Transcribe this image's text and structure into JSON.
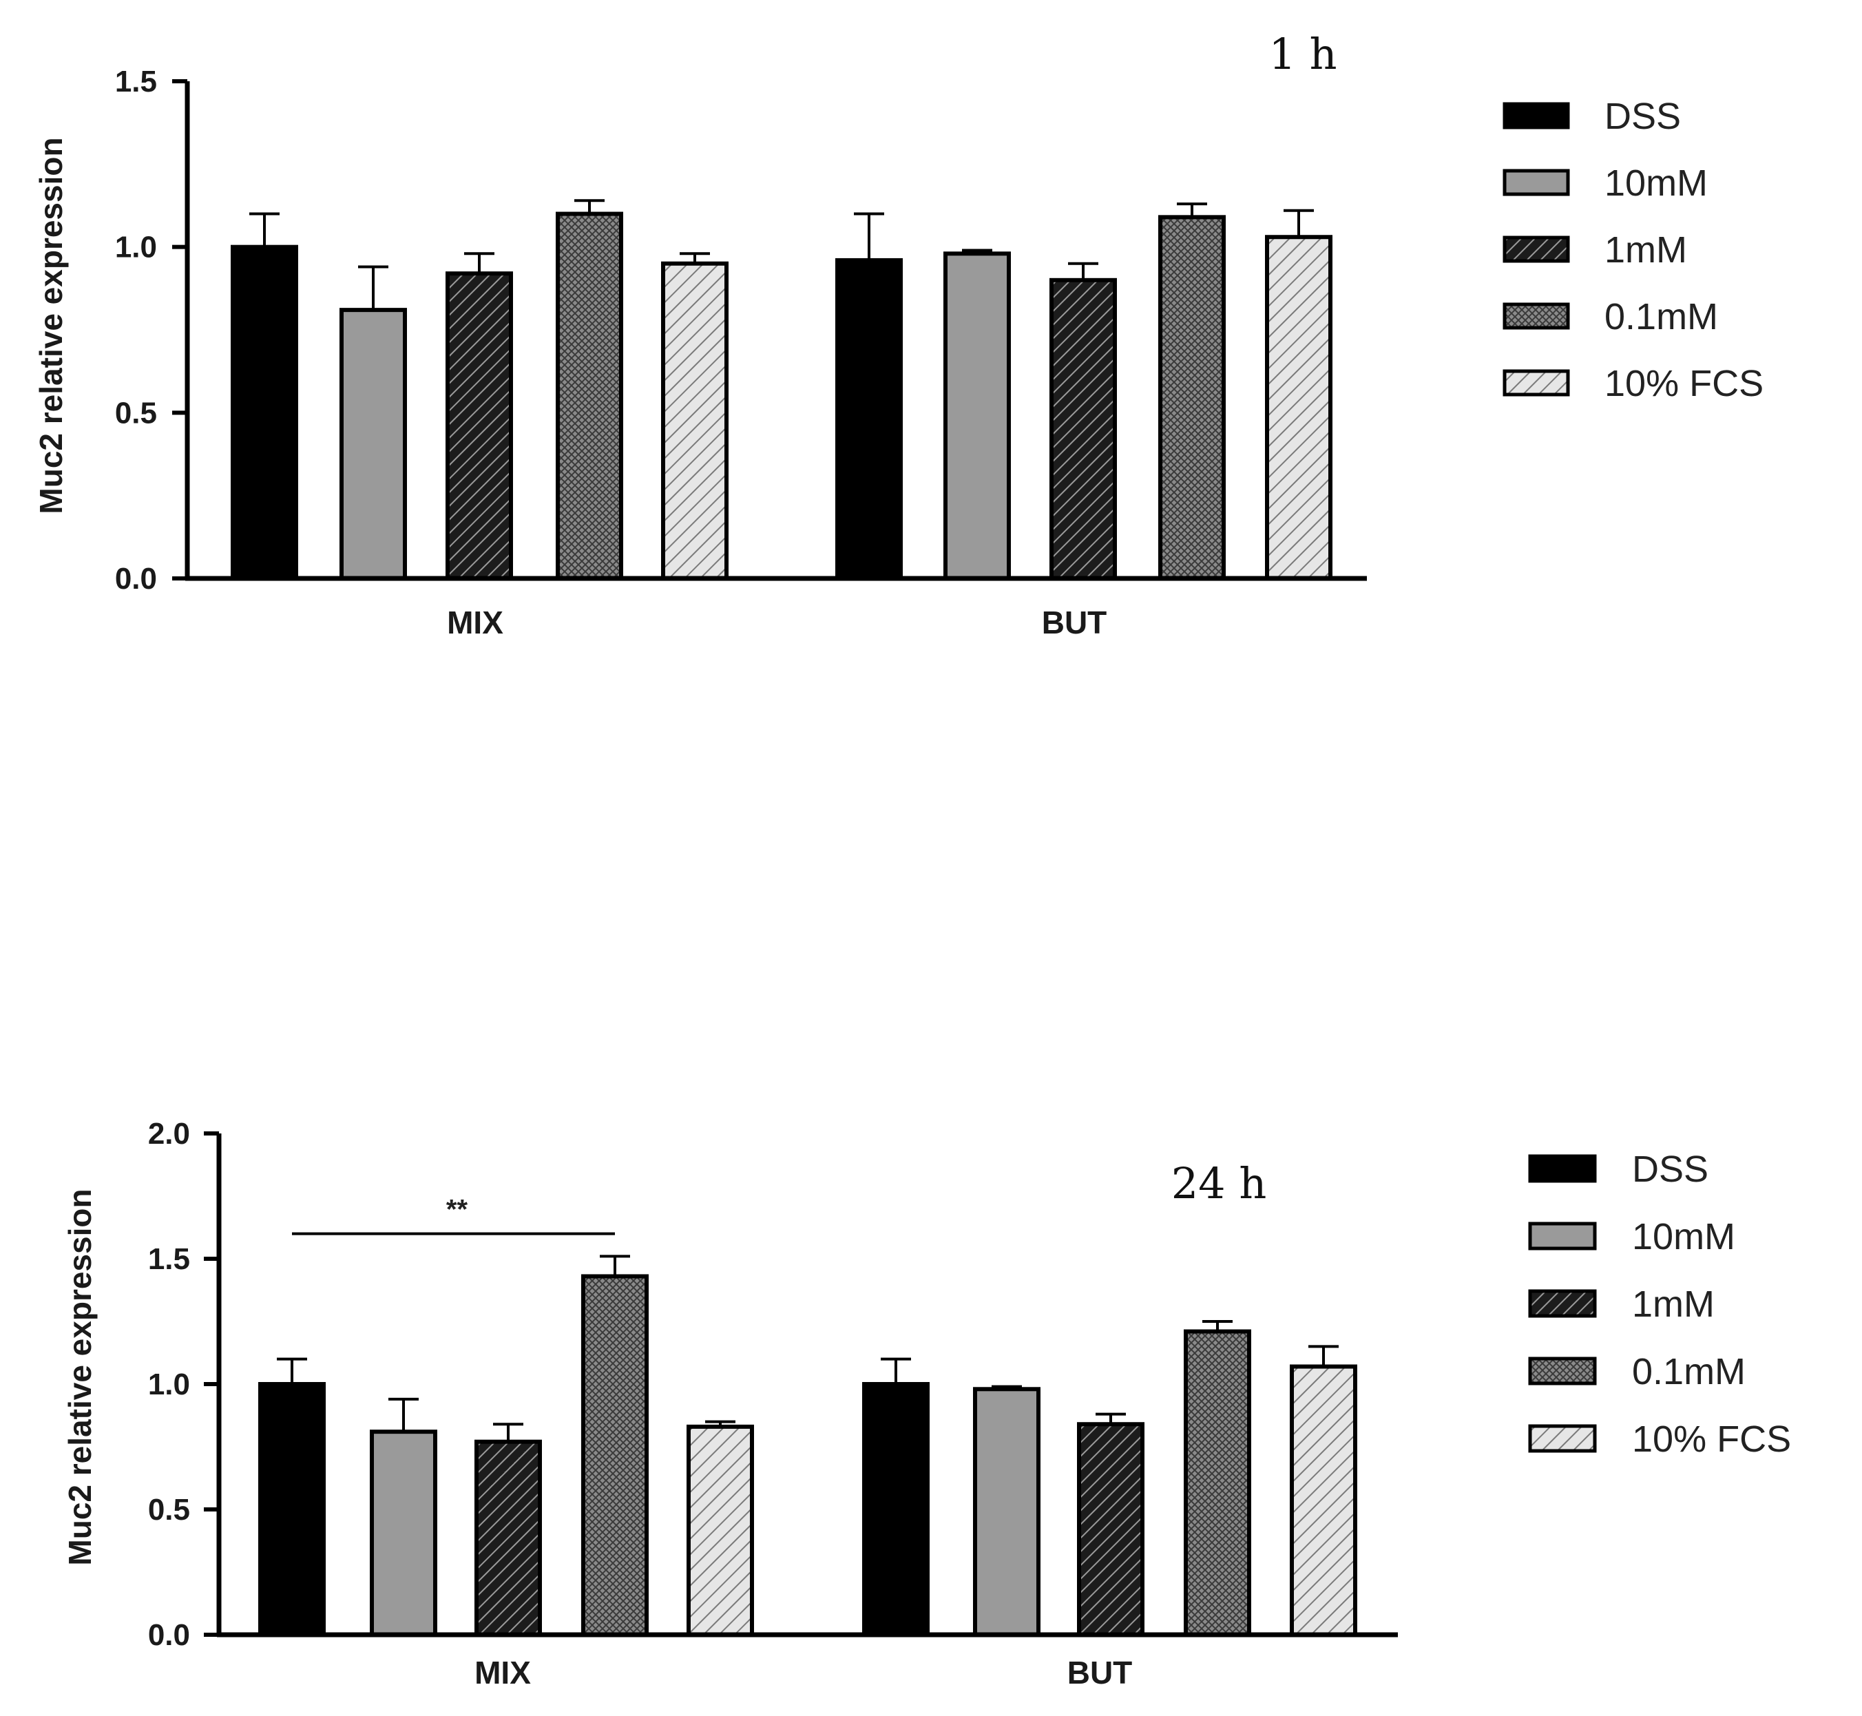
{
  "colors": {
    "axis": "#000000",
    "bar_stroke": "#000000",
    "solid_gray": "#9a9a9a",
    "dense_gray": "#8a8a8a",
    "light_hatch": "#dcdcdc"
  },
  "chart_data": [
    {
      "type": "bar",
      "title": "1 h",
      "ylabel": "Muc2 relative expression",
      "xlabel": "",
      "categories": [
        "MIX",
        "BUT"
      ],
      "ylim": [
        0,
        1.5
      ],
      "yticks": [
        0.0,
        0.5,
        1.0,
        1.5
      ],
      "ytick_labels": [
        "0.0",
        "0.5",
        "1.0",
        "1.5"
      ],
      "legend": [
        "DSS",
        "10mM",
        "1mM",
        "0.1mM",
        "10% FCS"
      ],
      "legend_position": "right",
      "series": [
        {
          "name": "DSS",
          "pattern": "solid-black",
          "values": [
            1.0,
            0.96
          ],
          "errors": [
            0.1,
            0.14
          ]
        },
        {
          "name": "10mM",
          "pattern": "solid-gray",
          "values": [
            0.81,
            0.98
          ],
          "errors": [
            0.13,
            0.01
          ]
        },
        {
          "name": "1mM",
          "pattern": "hatch-dark",
          "values": [
            0.92,
            0.9
          ],
          "errors": [
            0.06,
            0.05
          ]
        },
        {
          "name": "0.1mM",
          "pattern": "crosshatch",
          "values": [
            1.1,
            1.09
          ],
          "errors": [
            0.04,
            0.04
          ]
        },
        {
          "name": "10% FCS",
          "pattern": "hatch-light",
          "values": [
            0.95,
            1.03
          ],
          "errors": [
            0.03,
            0.08
          ]
        }
      ],
      "annotations": []
    },
    {
      "type": "bar",
      "title": "24 h",
      "ylabel": "Muc2 relative expression",
      "xlabel": "",
      "categories": [
        "MIX",
        "BUT"
      ],
      "ylim": [
        0,
        2.0
      ],
      "yticks": [
        0.0,
        0.5,
        1.0,
        1.5,
        2.0
      ],
      "ytick_labels": [
        "0.0",
        "0.5",
        "1.0",
        "1.5",
        "2.0"
      ],
      "legend": [
        "DSS",
        "10mM",
        "1mM",
        "0.1mM",
        "10% FCS"
      ],
      "legend_position": "right",
      "series": [
        {
          "name": "DSS",
          "pattern": "solid-black",
          "values": [
            1.0,
            1.0
          ],
          "errors": [
            0.1,
            0.1
          ]
        },
        {
          "name": "10mM",
          "pattern": "solid-gray",
          "values": [
            0.81,
            0.98
          ],
          "errors": [
            0.13,
            0.01
          ]
        },
        {
          "name": "1mM",
          "pattern": "hatch-dark",
          "values": [
            0.77,
            0.84
          ],
          "errors": [
            0.07,
            0.04
          ]
        },
        {
          "name": "0.1mM",
          "pattern": "crosshatch",
          "values": [
            1.43,
            1.21
          ],
          "errors": [
            0.08,
            0.04
          ]
        },
        {
          "name": "10% FCS",
          "pattern": "hatch-light",
          "values": [
            0.83,
            1.07
          ],
          "errors": [
            0.02,
            0.08
          ]
        }
      ],
      "annotations": [
        {
          "label": "**",
          "category": "MIX",
          "from_series": 0,
          "to_series": 3,
          "y": 1.6
        }
      ]
    }
  ]
}
